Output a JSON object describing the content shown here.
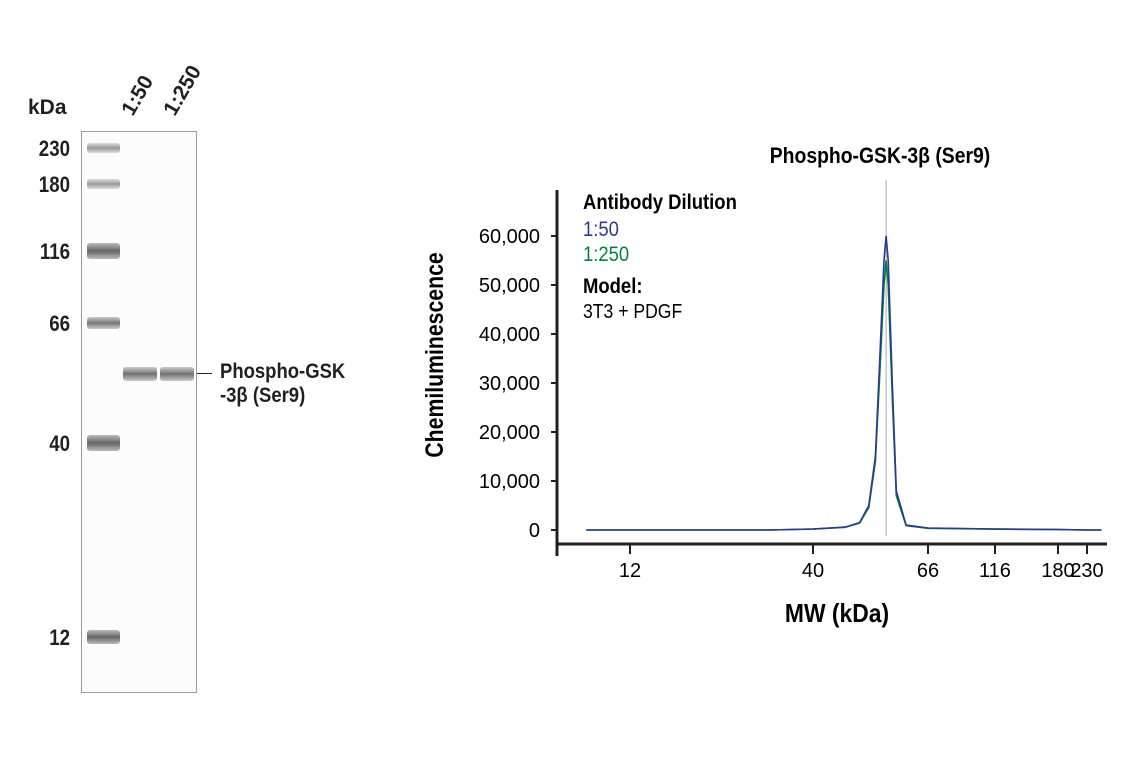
{
  "blot": {
    "unit_label": "kDa",
    "lanes": [
      "1:50",
      "1:250"
    ],
    "markers": [
      "230",
      "180",
      "116",
      "66",
      "40",
      "12"
    ],
    "target_label_line1": "Phospho-GSK",
    "target_label_line2": "-3β (Ser9)"
  },
  "chart_data": {
    "type": "line",
    "title": "Phospho-GSK-3β (Ser9)",
    "xlabel": "MW (kDa)",
    "ylabel": "Chemiluminescence",
    "x_ticks": [
      12,
      40,
      66,
      116,
      180,
      230
    ],
    "x_tick_labels": [
      "12",
      "40",
      "66",
      "116",
      "180",
      "230"
    ],
    "y_ticks": [
      0,
      10000,
      20000,
      30000,
      40000,
      50000,
      60000
    ],
    "y_tick_labels": [
      "0",
      "10,000",
      "20,000",
      "30,000",
      "40,000",
      "50,000",
      "60,000"
    ],
    "ylim": [
      -2000,
      66000
    ],
    "peak_marker_kda": 55,
    "legend_title": "Antibody Dilution",
    "model_label": "Model:",
    "model_value": "3T3 + PDGF",
    "series": [
      {
        "name": "1:50",
        "color": "#2b3990",
        "x": [
          9,
          12,
          20,
          30,
          40,
          46,
          49,
          51,
          52.5,
          53.5,
          54.5,
          55,
          55.5,
          56.5,
          57.5,
          60,
          66,
          116,
          180,
          230,
          260
        ],
        "y": [
          0,
          0,
          0,
          0,
          200,
          600,
          1500,
          5000,
          15000,
          35000,
          55000,
          60000,
          55000,
          30000,
          8000,
          1000,
          400,
          200,
          100,
          0,
          0
        ]
      },
      {
        "name": "1:250",
        "color": "#00843d",
        "x": [
          9,
          12,
          20,
          30,
          40,
          46,
          49,
          51,
          52.5,
          53.5,
          54.5,
          55,
          55.5,
          56.5,
          57.5,
          60,
          66,
          116,
          180,
          230,
          260
        ],
        "y": [
          0,
          0,
          0,
          0,
          180,
          550,
          1400,
          4600,
          14000,
          32000,
          50000,
          55000,
          50000,
          27000,
          7000,
          900,
          350,
          180,
          90,
          0,
          0
        ]
      }
    ]
  }
}
